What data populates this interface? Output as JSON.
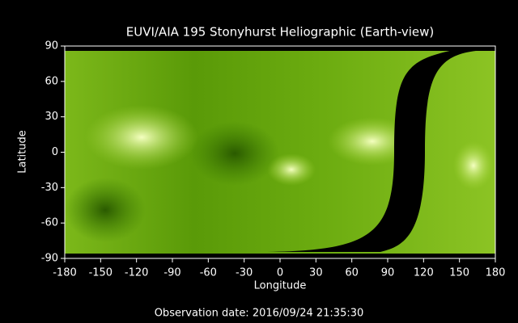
{
  "chart_data": {
    "type": "image",
    "title": "EUVI/AIA 195 Stonyhurst Heliographic (Earth-view)",
    "xlabel": "Longitude",
    "ylabel": "Latitude",
    "xlim": [
      -180,
      180
    ],
    "ylim": [
      -90,
      90
    ],
    "xticks": [
      -180,
      -150,
      -120,
      -90,
      -60,
      -30,
      0,
      30,
      60,
      90,
      120,
      150,
      180
    ],
    "yticks": [
      -90,
      -60,
      -30,
      0,
      30,
      60,
      90
    ],
    "footer": "Observation date: 2016/09/24 21:35:30"
  }
}
